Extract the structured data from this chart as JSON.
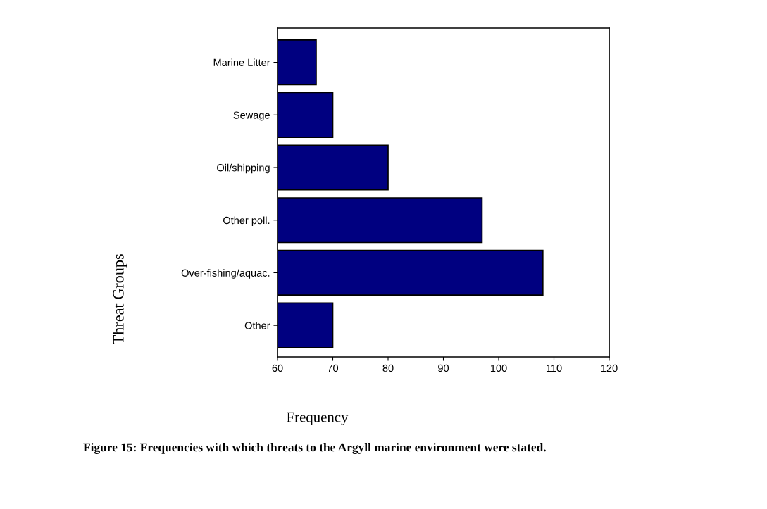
{
  "chart_data": {
    "type": "bar",
    "orientation": "horizontal",
    "categories": [
      "Marine Litter",
      "Sewage",
      "Oil/shipping",
      "Other poll.",
      "Over-fishing/aquac.",
      "Other"
    ],
    "values": [
      67,
      70,
      80,
      97,
      108,
      70
    ],
    "color": "#000080",
    "xlim": [
      60,
      120
    ],
    "xticks": [
      60,
      70,
      80,
      90,
      100,
      110,
      120
    ],
    "xlabel": "Frequency",
    "ylabel": "Threat Groups",
    "annotations": [
      "Figure 15: Frequencies with which threats to the Argyll marine environment were stated."
    ]
  }
}
